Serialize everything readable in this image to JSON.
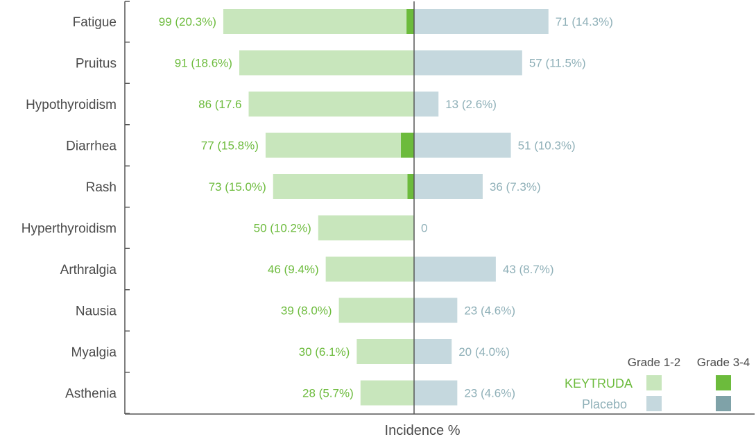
{
  "chart_data": {
    "type": "bar",
    "orientation": "horizontal-diverging",
    "categories": [
      "Fatigue",
      "Pruitus",
      "Hypothyroidism",
      "Diarrhea",
      "Rash",
      "Hyperthyroidism",
      "Arthralgia",
      "Nausia",
      "Myalgia",
      "Asthenia"
    ],
    "series": [
      {
        "name": "KEYTRUDA",
        "side": "left",
        "percent": [
          20.3,
          18.6,
          17.6,
          15.8,
          15.0,
          10.2,
          9.4,
          8.0,
          6.1,
          5.7
        ],
        "grade34_percent": [
          0.8,
          0,
          0,
          1.4,
          0.7,
          0,
          0,
          0,
          0,
          0
        ],
        "labels": [
          "99 (20.3%)",
          "91 (18.6%)",
          "86 (17.6",
          "77 (15.8%)",
          "73 (15.0%)",
          "50 (10.2%)",
          "46 (9.4%)",
          "39 (8.0%)",
          "30 (6.1%)",
          "28 (5.7%)"
        ]
      },
      {
        "name": "Placebo",
        "side": "right",
        "percent": [
          14.3,
          11.5,
          2.6,
          10.3,
          7.3,
          0,
          8.7,
          4.6,
          4.0,
          4.6
        ],
        "grade34_percent": [
          0,
          0,
          0,
          0,
          0,
          0,
          0,
          0,
          0,
          0
        ],
        "labels": [
          "71 (14.3%)",
          "57 (11.5%)",
          "13 (2.6%)",
          "51 (10.3%)",
          "36 (7.3%)",
          "0",
          "43 (8.7%)",
          "23 (4.6%)",
          "20 (4.0%)",
          "23 (4.6%)"
        ]
      }
    ],
    "xlabel": "Incidence %",
    "xlim": [
      -22,
      22
    ],
    "legend": {
      "position": "bottom-right",
      "column_headers": [
        "Grade 1-2",
        "Grade 3-4"
      ],
      "rows": [
        "KEYTRUDA",
        "Placebo"
      ]
    },
    "colors": {
      "keytruda_grade12": "#c8e6bc",
      "keytruda_grade34": "#6cbb3c",
      "placebo_grade12": "#c5d8de",
      "placebo_grade34": "#7fa2a8",
      "keytruda_text": "#6cbb3c",
      "placebo_text": "#8fb0b8",
      "axis": "#555555"
    }
  }
}
